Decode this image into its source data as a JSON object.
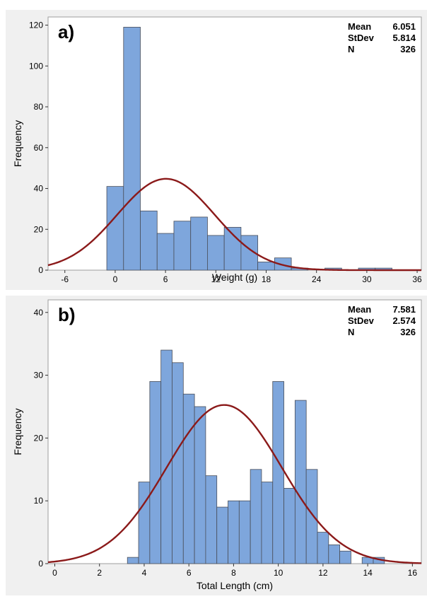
{
  "colors": {
    "bar_fill": "#7EA6DC",
    "bar_stroke": "#4A4F5A",
    "curve": "#8B1A1A",
    "plot_bg": "#ffffff",
    "panel_bg": "#F0F0F0",
    "frame": "#9E9E9E",
    "text": "#000000"
  },
  "chart_data": [
    {
      "type": "bar",
      "panel_label": "a)",
      "title": "",
      "xlabel": "Weight (g)",
      "ylabel": "Frequency",
      "xlim": [
        -8,
        36.5
      ],
      "ylim": [
        0,
        124
      ],
      "xticks": [
        -6,
        0,
        6,
        12,
        18,
        24,
        30,
        36
      ],
      "yticks": [
        0,
        20,
        40,
        60,
        80,
        100,
        120
      ],
      "bin_width": 2,
      "bins": [
        {
          "x0": -1,
          "x1": 1,
          "count": 41
        },
        {
          "x0": 1,
          "x1": 3,
          "count": 119
        },
        {
          "x0": 3,
          "x1": 5,
          "count": 29
        },
        {
          "x0": 5,
          "x1": 7,
          "count": 18
        },
        {
          "x0": 7,
          "x1": 9,
          "count": 24
        },
        {
          "x0": 9,
          "x1": 11,
          "count": 26
        },
        {
          "x0": 11,
          "x1": 13,
          "count": 17
        },
        {
          "x0": 13,
          "x1": 15,
          "count": 21
        },
        {
          "x0": 15,
          "x1": 17,
          "count": 17
        },
        {
          "x0": 17,
          "x1": 19,
          "count": 4
        },
        {
          "x0": 19,
          "x1": 21,
          "count": 6
        },
        {
          "x0": 21,
          "x1": 23,
          "count": 1
        },
        {
          "x0": 25,
          "x1": 27,
          "count": 1
        },
        {
          "x0": 29,
          "x1": 31,
          "count": 1
        },
        {
          "x0": 31,
          "x1": 33,
          "count": 1
        }
      ],
      "fit": {
        "distribution": "normal",
        "mean": 6.051,
        "stdev": 5.814,
        "n": 326
      },
      "stats": [
        {
          "label": "Mean",
          "value": "6.051"
        },
        {
          "label": "StDev",
          "value": "5.814"
        },
        {
          "label": "N",
          "value": "326"
        }
      ],
      "grid": false
    },
    {
      "type": "bar",
      "panel_label": "b)",
      "title": "",
      "xlabel": "Total Length (cm)",
      "ylabel": "Frequency",
      "xlim": [
        -0.3,
        16.4
      ],
      "ylim": [
        0,
        42
      ],
      "xticks": [
        0,
        2,
        4,
        6,
        8,
        10,
        12,
        14,
        16
      ],
      "yticks": [
        0,
        10,
        20,
        30,
        40
      ],
      "bin_width": 0.5,
      "bins": [
        {
          "x0": 3.25,
          "x1": 3.75,
          "count": 1
        },
        {
          "x0": 3.75,
          "x1": 4.25,
          "count": 13
        },
        {
          "x0": 4.25,
          "x1": 4.75,
          "count": 29
        },
        {
          "x0": 4.75,
          "x1": 5.25,
          "count": 34
        },
        {
          "x0": 5.25,
          "x1": 5.75,
          "count": 32
        },
        {
          "x0": 5.75,
          "x1": 6.25,
          "count": 27
        },
        {
          "x0": 6.25,
          "x1": 6.75,
          "count": 25
        },
        {
          "x0": 6.75,
          "x1": 7.25,
          "count": 14
        },
        {
          "x0": 7.25,
          "x1": 7.75,
          "count": 9
        },
        {
          "x0": 7.75,
          "x1": 8.25,
          "count": 10
        },
        {
          "x0": 8.25,
          "x1": 8.75,
          "count": 10
        },
        {
          "x0": 8.75,
          "x1": 9.25,
          "count": 15
        },
        {
          "x0": 9.25,
          "x1": 9.75,
          "count": 13
        },
        {
          "x0": 9.75,
          "x1": 10.25,
          "count": 29
        },
        {
          "x0": 10.25,
          "x1": 10.75,
          "count": 12
        },
        {
          "x0": 10.75,
          "x1": 11.25,
          "count": 26
        },
        {
          "x0": 11.25,
          "x1": 11.75,
          "count": 15
        },
        {
          "x0": 11.75,
          "x1": 12.25,
          "count": 5
        },
        {
          "x0": 12.25,
          "x1": 12.75,
          "count": 3
        },
        {
          "x0": 12.75,
          "x1": 13.25,
          "count": 2
        },
        {
          "x0": 13.75,
          "x1": 14.25,
          "count": 1
        },
        {
          "x0": 14.25,
          "x1": 14.75,
          "count": 1
        }
      ],
      "fit": {
        "distribution": "normal",
        "mean": 7.581,
        "stdev": 2.574,
        "n": 326
      },
      "stats": [
        {
          "label": "Mean",
          "value": "7.581"
        },
        {
          "label": "StDev",
          "value": "2.574"
        },
        {
          "label": "N",
          "value": "326"
        }
      ],
      "grid": false
    }
  ]
}
